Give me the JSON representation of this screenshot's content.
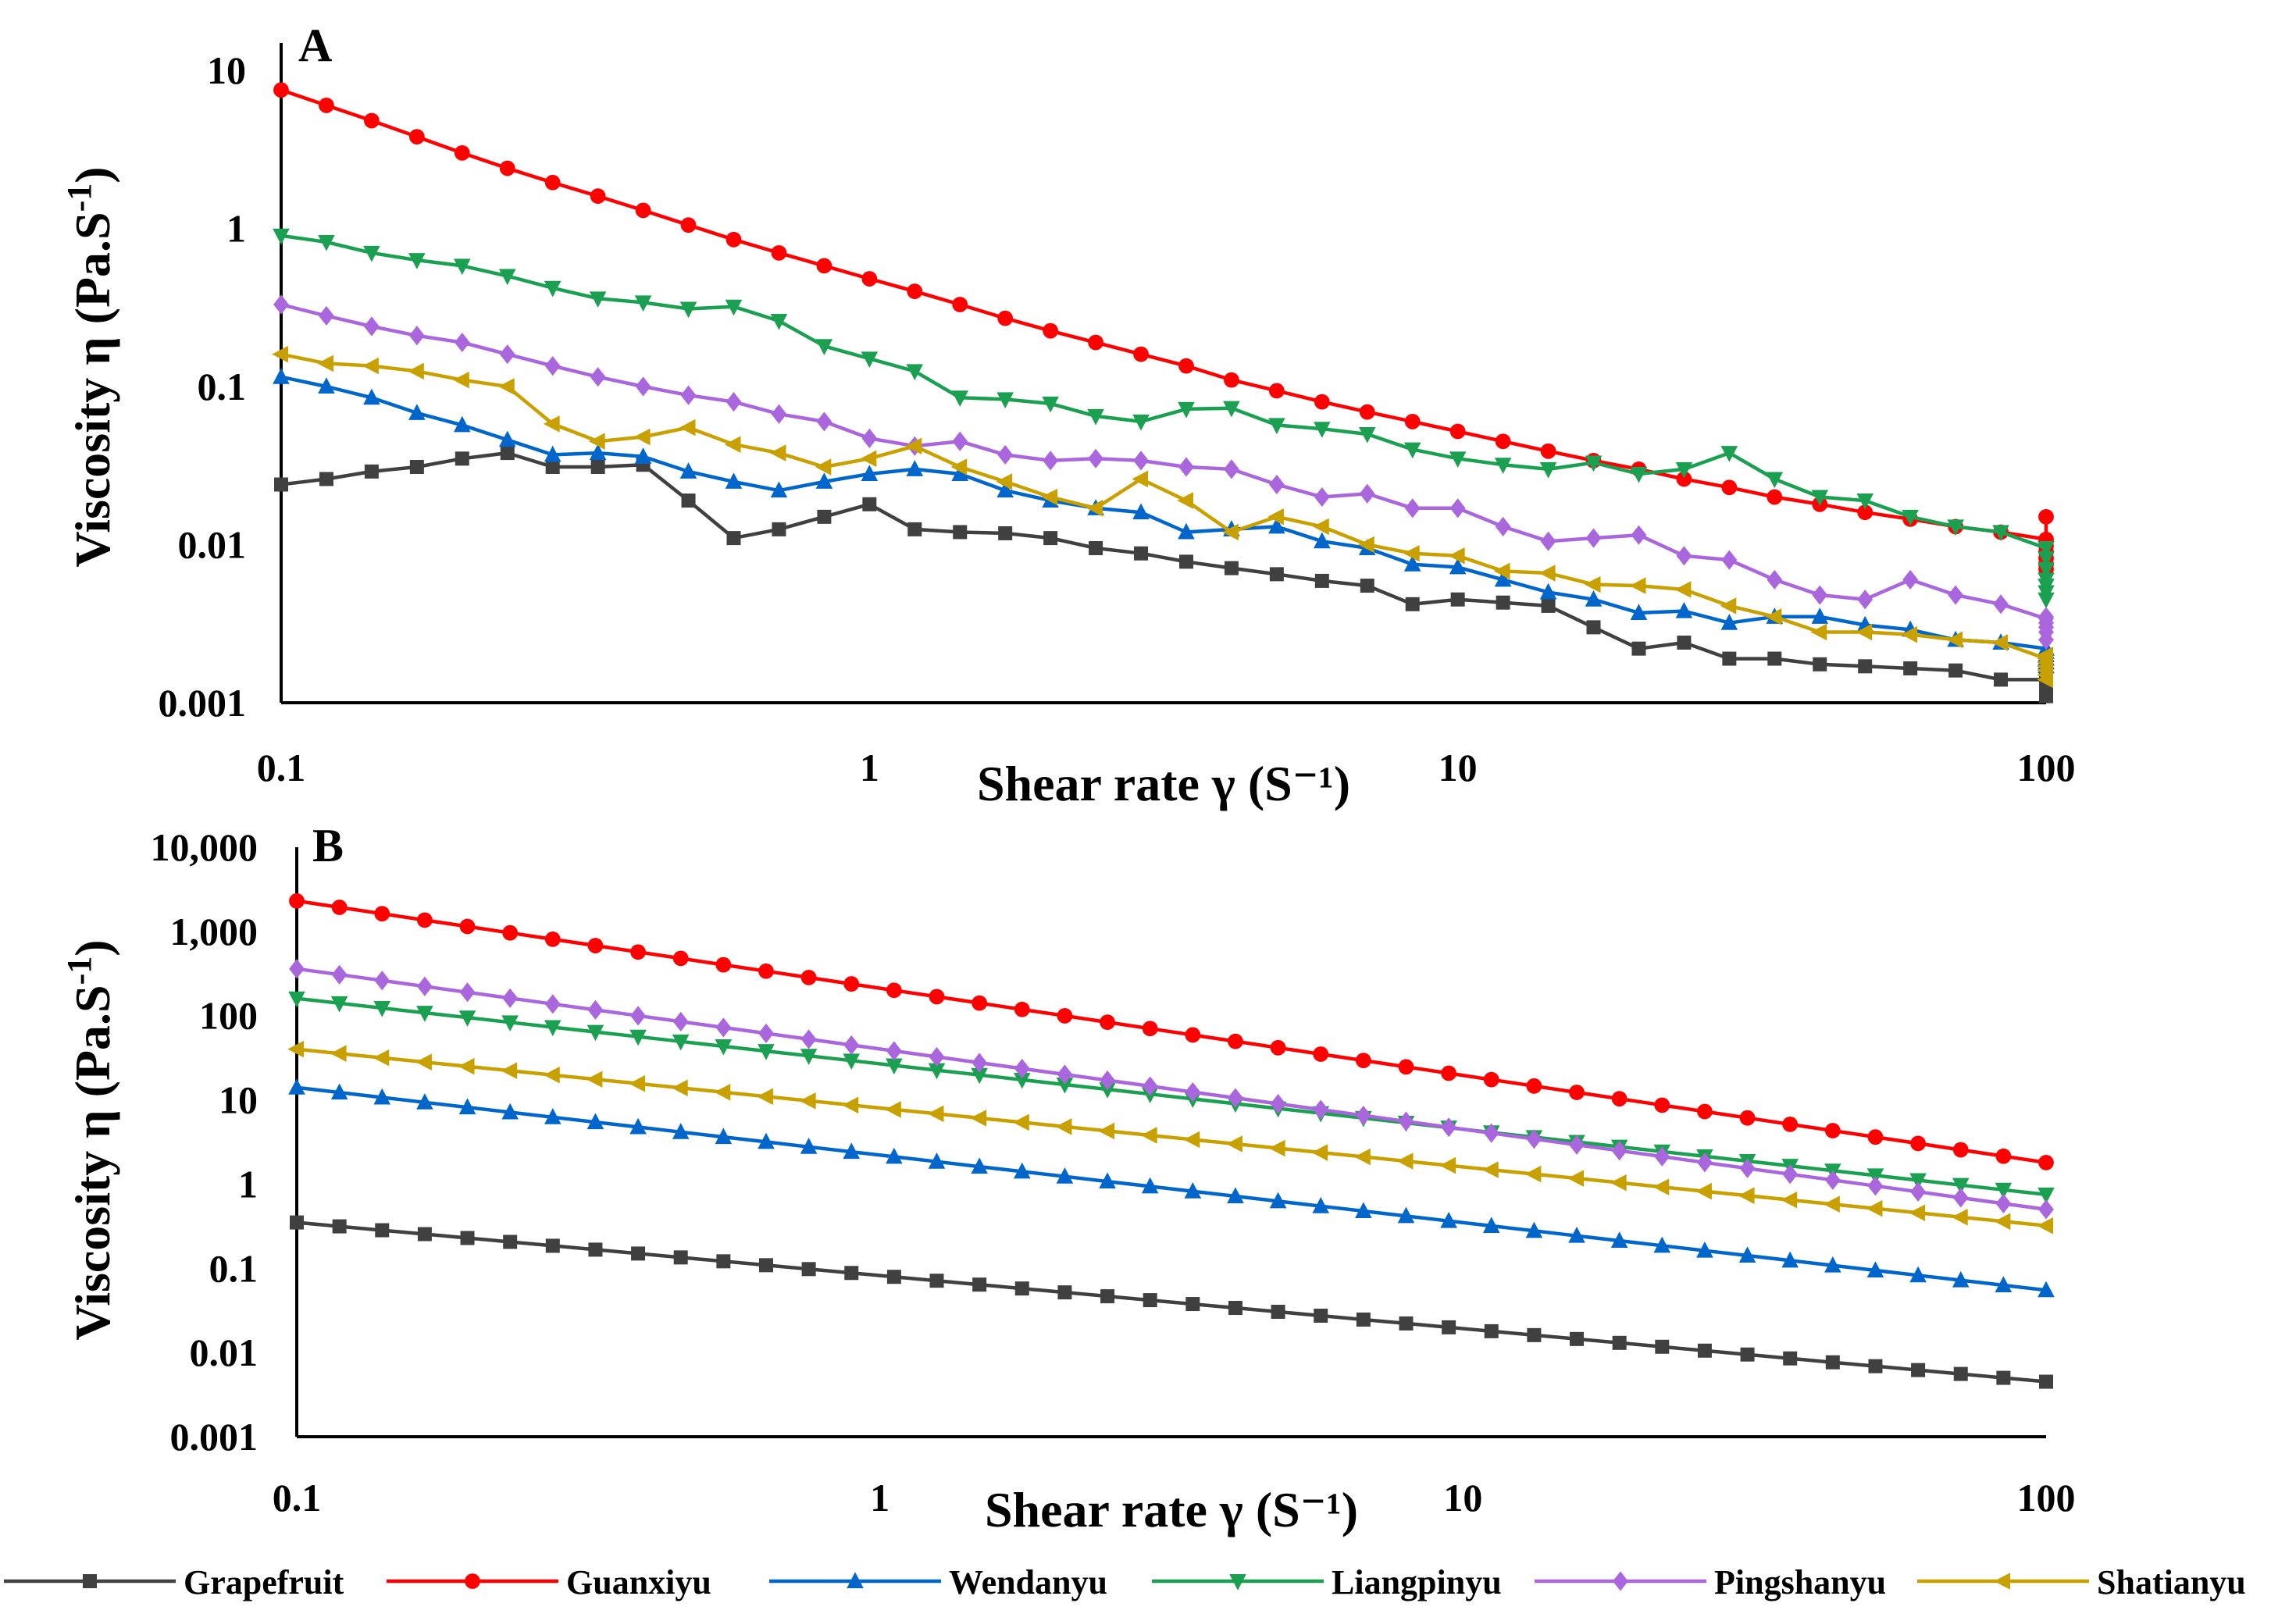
{
  "chart_data": [
    {
      "panel": "A",
      "type": "line",
      "xscale": "log",
      "yscale": "log",
      "xlim": [
        0.1,
        100
      ],
      "ylim": [
        0.001,
        10
      ],
      "xticks": [
        "0.1",
        "1",
        "10",
        "100"
      ],
      "yticks": [
        "0.001",
        "0.01",
        "0.1",
        "1",
        "10"
      ],
      "xlabel": "Shear rate γ (S⁻¹)",
      "ylabel_main": "Viscosity η (Pa.S",
      "ylabel_sup": "-1",
      "ylabel_end": ")",
      "points_per_decade": 13,
      "series": [
        {
          "name": "Grapefruit",
          "color": "#404040",
          "marker": "square",
          "values": [
            0.024,
            0.026,
            0.029,
            0.031,
            0.035,
            0.038,
            0.031,
            0.031,
            0.032,
            0.019,
            0.011,
            0.0125,
            0.015,
            0.018,
            0.0125,
            0.012,
            0.0118,
            0.011,
            0.0095,
            0.0088,
            0.0078,
            0.0071,
            0.0065,
            0.0059,
            0.0055,
            0.0042,
            0.0045,
            0.0043,
            0.0041,
            0.003,
            0.0022,
            0.0024,
            0.0019,
            0.0019,
            0.00175,
            0.0017,
            0.00165,
            0.0016,
            0.0014,
            0.0014,
            0.00135,
            0.0013,
            0.00125,
            0.0012,
            0.0012,
            0.0011
          ]
        },
        {
          "name": "Guanxiyu",
          "color": "#ff0000",
          "marker": "circle",
          "values": [
            7.5,
            6.0,
            4.8,
            3.8,
            3.0,
            2.4,
            1.95,
            1.6,
            1.3,
            1.05,
            0.85,
            0.7,
            0.58,
            0.48,
            0.4,
            0.33,
            0.27,
            0.225,
            0.19,
            0.16,
            0.135,
            0.11,
            0.094,
            0.08,
            0.069,
            0.06,
            0.052,
            0.045,
            0.039,
            0.034,
            0.03,
            0.026,
            0.023,
            0.02,
            0.018,
            0.016,
            0.0145,
            0.013,
            0.012,
            0.0108,
            0.0098,
            0.009,
            0.0082,
            0.0075,
            0.007,
            0.015
          ]
        },
        {
          "name": "Wendanyu",
          "color": "#0066cc",
          "marker": "triangle-up",
          "values": [
            0.115,
            0.1,
            0.085,
            0.068,
            0.057,
            0.046,
            0.037,
            0.038,
            0.036,
            0.029,
            0.025,
            0.022,
            0.025,
            0.028,
            0.03,
            0.028,
            0.022,
            0.019,
            0.017,
            0.016,
            0.012,
            0.0125,
            0.013,
            0.0105,
            0.0095,
            0.0075,
            0.0072,
            0.006,
            0.005,
            0.0045,
            0.0037,
            0.0038,
            0.0032,
            0.0035,
            0.0035,
            0.0031,
            0.0029,
            0.0025,
            0.0024,
            0.0022,
            0.0022,
            0.0021,
            0.002,
            0.0019,
            0.0018,
            0.0017
          ]
        },
        {
          "name": "Liangpinyu",
          "color": "#1aa050",
          "marker": "triangle-down",
          "values": [
            0.9,
            0.82,
            0.7,
            0.63,
            0.58,
            0.5,
            0.42,
            0.36,
            0.34,
            0.31,
            0.32,
            0.26,
            0.18,
            0.15,
            0.125,
            0.085,
            0.083,
            0.078,
            0.065,
            0.06,
            0.072,
            0.073,
            0.057,
            0.054,
            0.05,
            0.04,
            0.035,
            0.032,
            0.03,
            0.033,
            0.028,
            0.03,
            0.038,
            0.026,
            0.02,
            0.019,
            0.015,
            0.013,
            0.012,
            0.0095,
            0.0082,
            0.007,
            0.006,
            0.0055,
            0.005,
            0.0045
          ]
        },
        {
          "name": "Pingshanyu",
          "color": "#aa66dd",
          "marker": "diamond",
          "values": [
            0.33,
            0.28,
            0.24,
            0.21,
            0.19,
            0.16,
            0.135,
            0.115,
            0.1,
            0.088,
            0.08,
            0.067,
            0.06,
            0.047,
            0.042,
            0.045,
            0.037,
            0.034,
            0.035,
            0.034,
            0.031,
            0.03,
            0.024,
            0.02,
            0.021,
            0.017,
            0.017,
            0.013,
            0.0105,
            0.011,
            0.0115,
            0.0085,
            0.008,
            0.006,
            0.0048,
            0.0045,
            0.006,
            0.0048,
            0.0042,
            0.0034,
            0.0032,
            0.0035,
            0.0032,
            0.003,
            0.0028,
            0.0025
          ]
        },
        {
          "name": "Shatianyu",
          "color": "#c8a000",
          "marker": "triangle-left",
          "values": [
            0.16,
            0.14,
            0.135,
            0.125,
            0.11,
            0.1,
            0.058,
            0.045,
            0.048,
            0.055,
            0.043,
            0.038,
            0.031,
            0.035,
            0.042,
            0.031,
            0.025,
            0.02,
            0.017,
            0.026,
            0.019,
            0.012,
            0.015,
            0.013,
            0.01,
            0.0088,
            0.0085,
            0.0068,
            0.0066,
            0.0056,
            0.0055,
            0.0052,
            0.0041,
            0.0035,
            0.0028,
            0.0028,
            0.0027,
            0.0025,
            0.0024,
            0.0019,
            0.002,
            0.0018,
            0.0017,
            0.0016,
            0.0015,
            0.0014
          ]
        }
      ]
    },
    {
      "panel": "B",
      "type": "line",
      "xscale": "log",
      "yscale": "log",
      "xlim": [
        0.1,
        100
      ],
      "ylim": [
        0.001,
        10000
      ],
      "xticks": [
        "0.1",
        "1",
        "10",
        "100"
      ],
      "yticks": [
        "0.001",
        "0.01",
        "0.1",
        "1",
        "10",
        "100",
        "1,000",
        "10,000"
      ],
      "xlabel": "Shear rate γ (S⁻¹)",
      "ylabel_main": "Viscosity η (Pa.S",
      "ylabel_sup": "-1",
      "ylabel_end": ")",
      "series": [
        {
          "name": "Grapefruit",
          "color": "#404040",
          "marker": "square",
          "start": 0.35,
          "end": 0.0045,
          "n": 42
        },
        {
          "name": "Guanxiyu",
          "color": "#ff0000",
          "marker": "circle",
          "start": 2300,
          "end": 1.8,
          "n": 42
        },
        {
          "name": "Wendanyu",
          "color": "#0066cc",
          "marker": "triangle-up",
          "start": 14,
          "end": 0.055,
          "n": 42
        },
        {
          "name": "Liangpinyu",
          "color": "#1aa050",
          "marker": "triangle-down",
          "start": 160,
          "end": 0.75,
          "n": 42
        },
        {
          "name": "Pingshanyu",
          "color": "#aa66dd",
          "marker": "diamond",
          "start": 360,
          "end": 0.5,
          "n": 42
        },
        {
          "name": "Shatianyu",
          "color": "#c8a000",
          "marker": "triangle-left",
          "start": 40,
          "end": 0.32,
          "n": 42
        }
      ]
    }
  ],
  "legend": [
    {
      "name": "Grapefruit",
      "color": "#404040",
      "marker": "square"
    },
    {
      "name": "Guanxiyu",
      "color": "#ff0000",
      "marker": "circle"
    },
    {
      "name": "Wendanyu",
      "color": "#0066cc",
      "marker": "triangle-up"
    },
    {
      "name": "Liangpinyu",
      "color": "#1aa050",
      "marker": "triangle-down"
    },
    {
      "name": "Pingshanyu",
      "color": "#aa66dd",
      "marker": "diamond"
    },
    {
      "name": "Shatianyu",
      "color": "#c8a000",
      "marker": "triangle-left"
    }
  ]
}
